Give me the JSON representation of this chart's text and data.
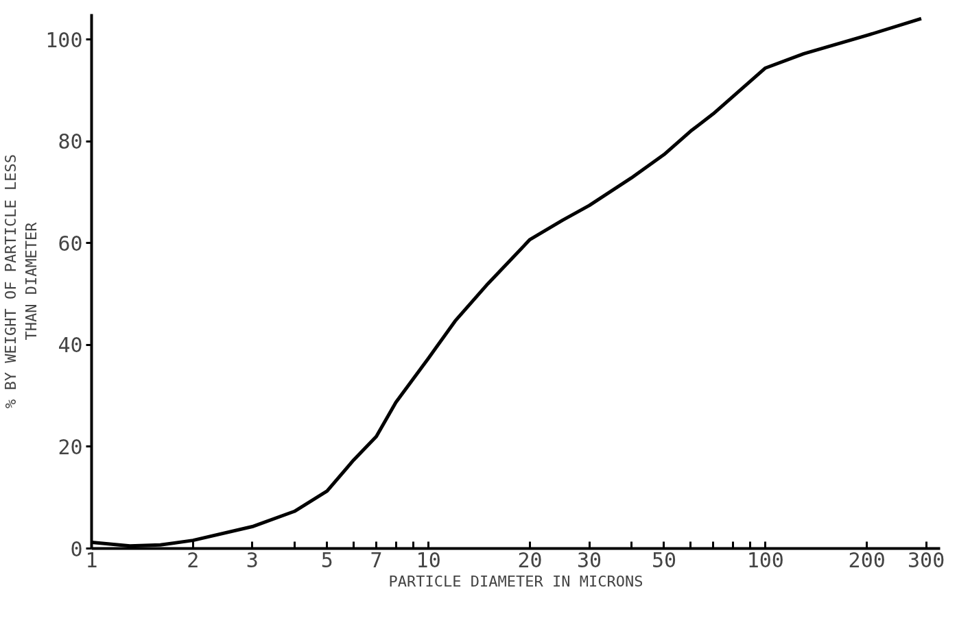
{
  "chart_data": {
    "type": "line",
    "xlabel": "PARTICLE DIAMETER IN MICRONS",
    "ylabel": "% BY WEIGHT OF PARTICLE LESS\nTHAN DIAMETER",
    "log": "x",
    "grid": false,
    "marker": "none",
    "line_style": "solid",
    "xlim": [
      1,
      330
    ],
    "ylim": [
      0,
      105
    ],
    "xticks": [
      1,
      2,
      3,
      {
        "value": 4,
        "label": null
      },
      5,
      {
        "value": 6,
        "label": null
      },
      7,
      {
        "value": 8,
        "label": null
      },
      {
        "value": 9,
        "label": null
      },
      10,
      20,
      30,
      {
        "value": 40,
        "label": null
      },
      50,
      {
        "value": 60,
        "label": null
      },
      {
        "value": 70,
        "label": null
      },
      {
        "value": 80,
        "label": null
      },
      {
        "value": 90,
        "label": null
      },
      100,
      200,
      300
    ],
    "yticks": [
      0,
      20,
      40,
      60,
      80,
      100
    ],
    "series": [
      {
        "color": "#000000",
        "x": [
          1,
          1.3,
          1.6,
          2,
          3,
          4,
          5,
          6,
          7,
          8,
          10,
          12,
          15,
          20,
          25,
          30,
          40,
          50,
          60,
          70,
          100,
          130,
          200,
          290
        ],
        "values": [
          1.2,
          0.5,
          0.7,
          1.6,
          4.3,
          7.3,
          11.3,
          17.4,
          22,
          28.7,
          37.4,
          44.7,
          52,
          60.7,
          64.5,
          67.4,
          72.8,
          77.4,
          82,
          85.4,
          94.4,
          97.2,
          100.8,
          104.1
        ]
      }
    ]
  }
}
